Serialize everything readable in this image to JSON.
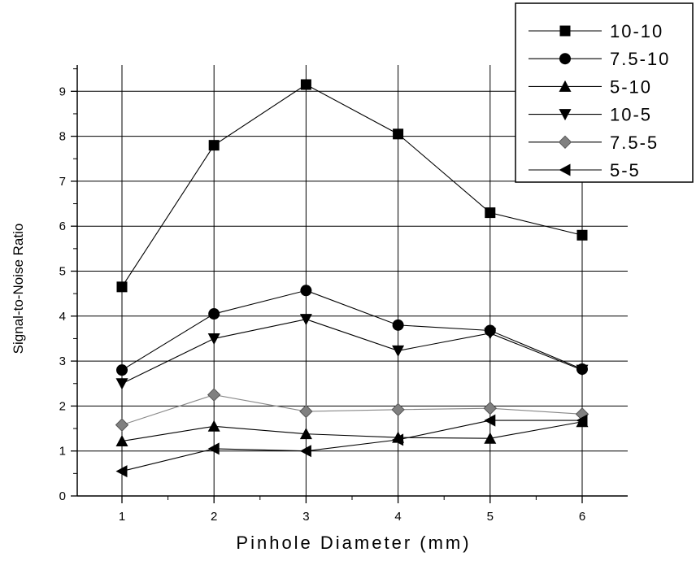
{
  "chart_data": {
    "type": "line",
    "title": "",
    "xlabel": "Pinhole Diameter (mm)",
    "ylabel": "Signal-to-Noise Ratio",
    "x": [
      1,
      2,
      3,
      4,
      5,
      6
    ],
    "xlim": [
      0.5,
      6.5
    ],
    "ylim": [
      0,
      10
    ],
    "x_ticks": [
      "1",
      "2",
      "3",
      "4",
      "5",
      "6"
    ],
    "y_ticks": [
      "0",
      "1",
      "2",
      "3",
      "4",
      "5",
      "6",
      "7",
      "8",
      "9"
    ],
    "grid": true,
    "legend_position": "top-right",
    "series": [
      {
        "name": "10-10",
        "marker": "square",
        "color": "#000000",
        "values": [
          4.65,
          7.8,
          9.15,
          8.05,
          6.3,
          5.8
        ]
      },
      {
        "name": "7.5-10",
        "marker": "circle",
        "color": "#000000",
        "values": [
          2.8,
          4.05,
          4.57,
          3.8,
          3.68,
          2.82
        ]
      },
      {
        "name": "5-10",
        "marker": "triangle-up",
        "color": "#000000",
        "values": [
          1.22,
          1.55,
          1.38,
          1.3,
          1.28,
          1.65
        ]
      },
      {
        "name": "10-5",
        "marker": "triangle-down",
        "color": "#000000",
        "values": [
          2.5,
          3.5,
          3.93,
          3.23,
          3.62,
          2.8
        ]
      },
      {
        "name": "7.5-5",
        "marker": "diamond",
        "color": "#808080",
        "values": [
          1.58,
          2.25,
          1.88,
          1.92,
          1.95,
          1.82
        ]
      },
      {
        "name": "5-5",
        "marker": "triangle-left",
        "color": "#000000",
        "values": [
          0.55,
          1.05,
          1.0,
          1.25,
          1.68,
          1.68
        ]
      }
    ],
    "legend": {
      "labels": [
        "10-10",
        "7.5-10",
        "5-10",
        "10-5",
        "7.5-5",
        "5-5"
      ]
    }
  }
}
